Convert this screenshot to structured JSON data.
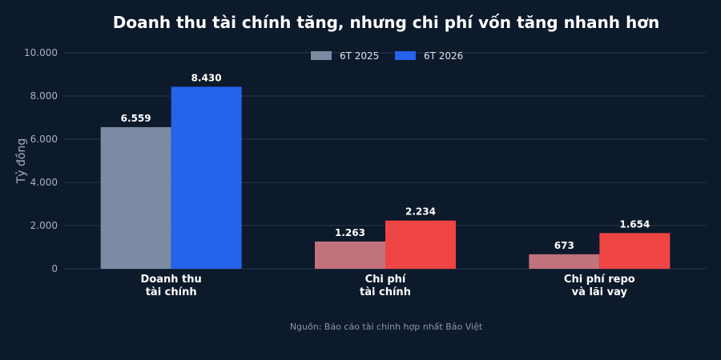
{
  "chart_data": {
    "type": "bar",
    "title": "Doanh thu tài chính tăng, nhưng chi phí vốn tăng nhanh hơn",
    "ylabel": "Tỷ đồng",
    "xlabel": "",
    "ylim": [
      0,
      10000
    ],
    "yticks": [
      0,
      2000,
      4000,
      6000,
      8000,
      10000
    ],
    "ytick_labels": [
      "0",
      "2.000",
      "4.000",
      "6.000",
      "8.000",
      "10.000"
    ],
    "grid": true,
    "legend_position": "top-center",
    "categories": [
      [
        "Doanh thu",
        "tài chính"
      ],
      [
        "Chi phí",
        "tài chính"
      ],
      [
        "Chi phí repo",
        "và lãi vay"
      ]
    ],
    "series": [
      {
        "name": "6T 2025",
        "values": [
          6559,
          1263,
          673
        ],
        "value_labels": [
          "6.559",
          "1.263",
          "673"
        ],
        "colors": [
          "#7a8ba3",
          "#c2727b",
          "#c2727b"
        ]
      },
      {
        "name": "6T 2026",
        "values": [
          8430,
          2234,
          1654
        ],
        "value_labels": [
          "8.430",
          "2.234",
          "1.654"
        ],
        "colors": [
          "#2563eb",
          "#ef4444",
          "#ef4444"
        ]
      }
    ],
    "legend_colors": [
      "#7a8ba3",
      "#2563eb"
    ],
    "source": "Nguồn: Báo cáo tài chính hợp nhất Bảo Việt"
  }
}
